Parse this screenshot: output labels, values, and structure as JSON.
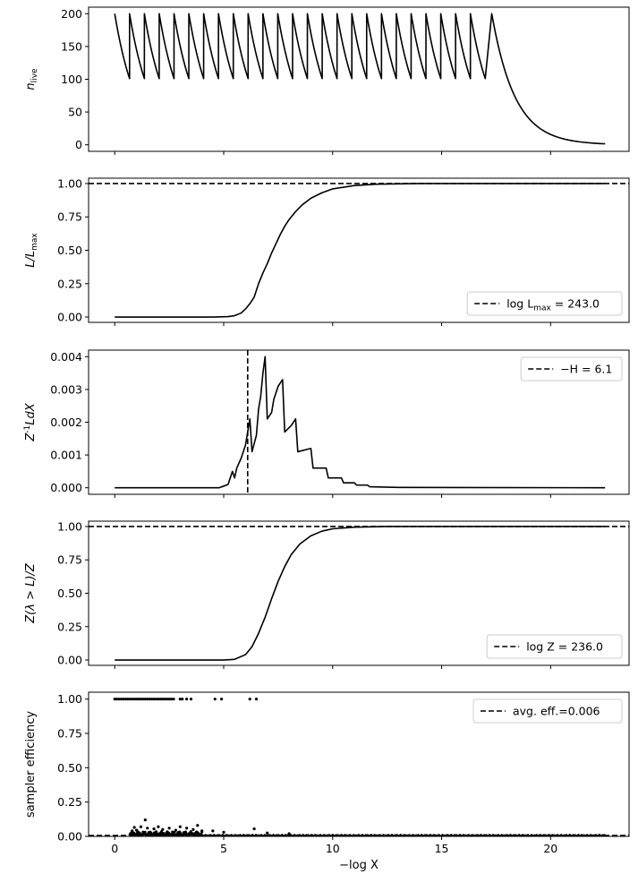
{
  "chart_data": [
    {
      "type": "line",
      "ylabel_main": "n",
      "ylabel_sub": "live",
      "xlim": [
        -1.2,
        23.6
      ],
      "ylim": [
        -10,
        210
      ],
      "xticks": [
        0,
        5,
        10,
        15,
        20
      ],
      "yticks": [
        0,
        50,
        100,
        150,
        200
      ],
      "ytick_labels": [
        "0",
        "50",
        "100",
        "150",
        "200"
      ],
      "show_xticklabels": false,
      "sawtooth": {
        "start": 0.0,
        "period": 0.68,
        "cycles": 25,
        "n_max": 200,
        "n_min": 101
      },
      "tail": {
        "x_start": 17.3,
        "x_end": 22.5,
        "n_start": 200,
        "n_end": 1.5
      },
      "series_color": "#000000"
    },
    {
      "type": "line",
      "ylabel_main": "L/L",
      "ylabel_sub": "max",
      "xlim": [
        -1.2,
        23.6
      ],
      "ylim": [
        -0.04,
        1.04
      ],
      "xticks": [
        0,
        5,
        10,
        15,
        20
      ],
      "yticks": [
        0,
        0.25,
        0.5,
        0.75,
        1.0
      ],
      "ytick_labels": [
        "0.00",
        "0.25",
        "0.50",
        "0.75",
        "1.00"
      ],
      "show_xticklabels": false,
      "hline": 1.0,
      "legend": {
        "label": "log L",
        "label_sub": "max",
        "label_value": " = 243.0",
        "position": "lower right"
      },
      "points": [
        [
          0,
          0
        ],
        [
          4.5,
          0
        ],
        [
          5.2,
          0.003
        ],
        [
          5.5,
          0.01
        ],
        [
          5.8,
          0.03
        ],
        [
          6.0,
          0.06
        ],
        [
          6.2,
          0.1
        ],
        [
          6.4,
          0.15
        ],
        [
          6.5,
          0.2
        ],
        [
          6.6,
          0.25
        ],
        [
          6.8,
          0.33
        ],
        [
          7.0,
          0.4
        ],
        [
          7.2,
          0.48
        ],
        [
          7.4,
          0.55
        ],
        [
          7.6,
          0.62
        ],
        [
          7.8,
          0.68
        ],
        [
          8.0,
          0.73
        ],
        [
          8.3,
          0.79
        ],
        [
          8.6,
          0.84
        ],
        [
          9.0,
          0.89
        ],
        [
          9.5,
          0.93
        ],
        [
          10.0,
          0.96
        ],
        [
          11.0,
          0.985
        ],
        [
          12.0,
          0.995
        ],
        [
          14.0,
          1.0
        ],
        [
          22.5,
          1.0
        ]
      ]
    },
    {
      "type": "line",
      "ylabel_main": "Z",
      "ylabel_sup": "-1",
      "ylabel_rest": "LdX",
      "xlim": [
        -1.2,
        23.6
      ],
      "ylim": [
        -0.0002,
        0.0042
      ],
      "xticks": [
        0,
        5,
        10,
        15,
        20
      ],
      "yticks": [
        0,
        0.001,
        0.002,
        0.003,
        0.004
      ],
      "ytick_labels": [
        "0.000",
        "0.001",
        "0.002",
        "0.003",
        "0.004"
      ],
      "show_xticklabels": false,
      "vline": 6.1,
      "legend": {
        "label": "−H = 6.1",
        "position": "upper right"
      },
      "points": [
        [
          0,
          0
        ],
        [
          4.8,
          0
        ],
        [
          5.2,
          0.0001
        ],
        [
          5.4,
          0.0005
        ],
        [
          5.5,
          0.0003
        ],
        [
          5.6,
          0.0006
        ],
        [
          5.8,
          0.0009
        ],
        [
          6.0,
          0.0013
        ],
        [
          6.1,
          0.0017
        ],
        [
          6.2,
          0.0021
        ],
        [
          6.3,
          0.0011
        ],
        [
          6.5,
          0.0016
        ],
        [
          6.6,
          0.0024
        ],
        [
          6.7,
          0.0028
        ],
        [
          6.8,
          0.0035
        ],
        [
          6.9,
          0.004
        ],
        [
          7.0,
          0.0021
        ],
        [
          7.2,
          0.0023
        ],
        [
          7.3,
          0.0027
        ],
        [
          7.5,
          0.0031
        ],
        [
          7.6,
          0.0032
        ],
        [
          7.7,
          0.0033
        ],
        [
          7.8,
          0.0017
        ],
        [
          8.1,
          0.0019
        ],
        [
          8.3,
          0.0021
        ],
        [
          8.4,
          0.0011
        ],
        [
          9.0,
          0.0012
        ],
        [
          9.1,
          0.0006
        ],
        [
          9.7,
          0.0006
        ],
        [
          9.8,
          0.0003
        ],
        [
          10.4,
          0.0003
        ],
        [
          10.5,
          0.00015
        ],
        [
          11.0,
          0.00015
        ],
        [
          11.1,
          8e-05
        ],
        [
          11.6,
          8e-05
        ],
        [
          11.7,
          3e-05
        ],
        [
          13.0,
          1e-05
        ],
        [
          22.5,
          0
        ]
      ]
    },
    {
      "type": "line",
      "ylabel_main": "Z(λ > L)/Z",
      "xlim": [
        -1.2,
        23.6
      ],
      "ylim": [
        -0.04,
        1.04
      ],
      "xticks": [
        0,
        5,
        10,
        15,
        20
      ],
      "yticks": [
        0,
        0.25,
        0.5,
        0.75,
        1.0
      ],
      "ytick_labels": [
        "0.00",
        "0.25",
        "0.50",
        "0.75",
        "1.00"
      ],
      "show_xticklabels": false,
      "hline": 1.0,
      "legend": {
        "label": "log Z = 236.0",
        "position": "lower right"
      },
      "points": [
        [
          0,
          0
        ],
        [
          5.0,
          0
        ],
        [
          5.5,
          0.005
        ],
        [
          6.0,
          0.04
        ],
        [
          6.3,
          0.1
        ],
        [
          6.6,
          0.2
        ],
        [
          6.9,
          0.32
        ],
        [
          7.2,
          0.46
        ],
        [
          7.5,
          0.59
        ],
        [
          7.8,
          0.7
        ],
        [
          8.1,
          0.79
        ],
        [
          8.5,
          0.87
        ],
        [
          9.0,
          0.93
        ],
        [
          9.5,
          0.965
        ],
        [
          10.0,
          0.983
        ],
        [
          11.0,
          0.995
        ],
        [
          12.5,
          1.0
        ],
        [
          22.5,
          1.0
        ]
      ]
    },
    {
      "type": "scatter",
      "ylabel_main": "sampler efficiency",
      "xlabel": "−log X",
      "xlim": [
        -1.2,
        23.6
      ],
      "ylim": [
        0,
        1.05
      ],
      "xticks": [
        0,
        5,
        10,
        15,
        20
      ],
      "xtick_labels": [
        "0",
        "5",
        "10",
        "15",
        "20"
      ],
      "yticks": [
        0,
        0.25,
        0.5,
        0.75,
        1.0
      ],
      "ytick_labels": [
        "0.00",
        "0.25",
        "0.50",
        "0.75",
        "1.00"
      ],
      "show_xticklabels": true,
      "hline": 0.006,
      "legend": {
        "label": "avg. eff.=0.006",
        "position": "upper right"
      },
      "top_points": [
        [
          0.0,
          1
        ],
        [
          0.1,
          1
        ],
        [
          0.2,
          1
        ],
        [
          0.3,
          1
        ],
        [
          0.4,
          1
        ],
        [
          0.5,
          1
        ],
        [
          0.6,
          1
        ],
        [
          0.7,
          1
        ],
        [
          0.8,
          1
        ],
        [
          0.9,
          1
        ],
        [
          1.0,
          1
        ],
        [
          1.1,
          1
        ],
        [
          1.2,
          1
        ],
        [
          1.3,
          1
        ],
        [
          1.4,
          1
        ],
        [
          1.5,
          1
        ],
        [
          1.6,
          1
        ],
        [
          1.7,
          1
        ],
        [
          1.8,
          1
        ],
        [
          1.9,
          1
        ],
        [
          2.0,
          1
        ],
        [
          2.1,
          1
        ],
        [
          2.2,
          1
        ],
        [
          2.3,
          1
        ],
        [
          2.4,
          1
        ],
        [
          2.5,
          1
        ],
        [
          2.6,
          1
        ],
        [
          2.7,
          1
        ],
        [
          3.0,
          1
        ],
        [
          3.1,
          1
        ],
        [
          3.3,
          1
        ],
        [
          3.5,
          1
        ],
        [
          4.6,
          1
        ],
        [
          4.9,
          1
        ],
        [
          6.2,
          1
        ],
        [
          6.5,
          1
        ]
      ],
      "bottom_band": {
        "x_start": 0.7,
        "x_end": 22.5,
        "dense_end": 4.0
      },
      "outliers": [
        [
          0.8,
          0.04
        ],
        [
          0.9,
          0.065
        ],
        [
          1.0,
          0.045
        ],
        [
          1.2,
          0.07
        ],
        [
          1.4,
          0.12
        ],
        [
          1.5,
          0.06
        ],
        [
          1.8,
          0.055
        ],
        [
          2.0,
          0.07
        ],
        [
          2.2,
          0.05
        ],
        [
          2.5,
          0.06
        ],
        [
          2.8,
          0.045
        ],
        [
          3.0,
          0.07
        ],
        [
          3.3,
          0.06
        ],
        [
          3.6,
          0.05
        ],
        [
          3.8,
          0.08
        ],
        [
          4.0,
          0.04
        ],
        [
          4.5,
          0.04
        ],
        [
          5.0,
          0.03
        ],
        [
          6.4,
          0.055
        ],
        [
          7.0,
          0.025
        ],
        [
          8.0,
          0.02
        ]
      ]
    }
  ]
}
